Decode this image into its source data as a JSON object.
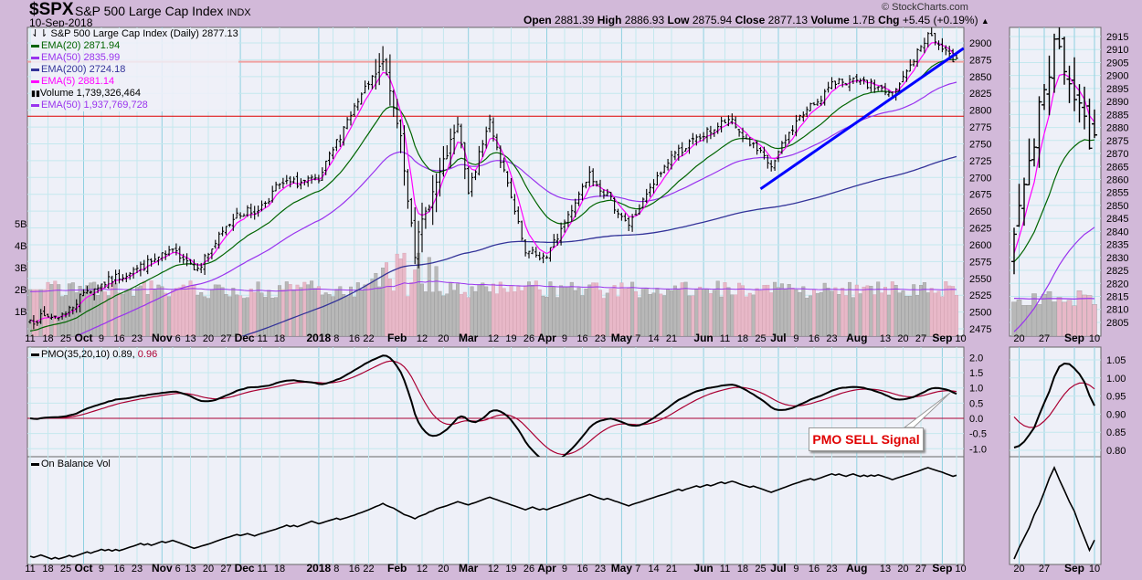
{
  "header": {
    "symbol": "$SPX",
    "name": "S&P 500 Large Cap Index",
    "exchange": "INDX",
    "date": "10-Sep-2018",
    "copyright": "© StockCharts.com",
    "open_label": "Open",
    "open": "2881.39",
    "high_label": "High",
    "high": "2886.93",
    "low_label": "Low",
    "low": "2875.94",
    "close_label": "Close",
    "close": "2877.13",
    "volume_label": "Volume",
    "volume": "1.7B",
    "chg_label": "Chg",
    "chg": "+5.45 (+0.19%)",
    "chg_arrow": "▲"
  },
  "legend": {
    "price": "S&P 500 Large Cap Index (Daily) 2877.13",
    "ema20": "EMA(20) 2871.94",
    "ema50": "EMA(50) 2835.99",
    "ema200": "EMA(200) 2724.18",
    "ema5": "EMA(5) 2881.14",
    "volume": "Volume 1,739,326,464",
    "vol_ema50": "EMA(50) 1,937,769,728",
    "pmo_label": "PMO(35,20,10)",
    "pmo_value": "0.89,",
    "pmo_signal": "0.96",
    "obv": "On Balance Vol"
  },
  "annotation": "PMO SELL Signal",
  "colors": {
    "ema20": "#006400",
    "ema50": "#9933ee",
    "ema200": "#333399",
    "ema5": "#ff00ff",
    "trend": "#0000ff",
    "pmo_signal": "#aa0033",
    "hline_pink": "#f0a0a0",
    "hline_red": "#dd0000"
  },
  "chart_data": {
    "type": "ohlc",
    "title": "$SPX S&P 500 Large Cap Index (Daily)",
    "price_axis": {
      "min": 2475,
      "max": 2900,
      "step": 25
    },
    "zoom_price_axis": {
      "min": 2805,
      "max": 2915,
      "step": 5
    },
    "volume_axis_labels": [
      "1B",
      "2B",
      "3B",
      "4B",
      "5B"
    ],
    "pmo_axis": {
      "min": -1.0,
      "max": 2.0,
      "step": 0.5,
      "labels": [
        "-1.0",
        "-0.5",
        "0.0",
        "0.5",
        "1.0",
        "1.5",
        "2.0"
      ]
    },
    "zoom_pmo_axis": {
      "labels": [
        "0.80",
        "0.85",
        "0.90",
        "0.95",
        "1.00",
        "1.05"
      ],
      "min": 0.8,
      "max": 1.05
    },
    "last_bar": {
      "date": "2018-09-10",
      "open": 2881.39,
      "high": 2886.93,
      "low": 2875.94,
      "close": 2877.13,
      "volume": 1739326464
    },
    "price_keypoints": [
      {
        "date": "2017-09-11",
        "close": 2488
      },
      {
        "date": "2017-09-25",
        "close": 2497
      },
      {
        "date": "2017-10-02",
        "close": 2529
      },
      {
        "date": "2017-10-23",
        "close": 2565
      },
      {
        "date": "2017-11-07",
        "close": 2591
      },
      {
        "date": "2017-11-15",
        "close": 2565
      },
      {
        "date": "2017-11-30",
        "close": 2647
      },
      {
        "date": "2017-12-08",
        "close": 2651
      },
      {
        "date": "2017-12-18",
        "close": 2690
      },
      {
        "date": "2018-01-02",
        "close": 2695
      },
      {
        "date": "2018-01-12",
        "close": 2786
      },
      {
        "date": "2018-01-26",
        "close": 2872
      },
      {
        "date": "2018-02-02",
        "close": 2762
      },
      {
        "date": "2018-02-08",
        "close": 2581
      },
      {
        "date": "2018-02-09",
        "close": 2619
      },
      {
        "date": "2018-02-26",
        "close": 2779
      },
      {
        "date": "2018-03-01",
        "close": 2677
      },
      {
        "date": "2018-03-09",
        "close": 2786
      },
      {
        "date": "2018-03-23",
        "close": 2588
      },
      {
        "date": "2018-04-02",
        "close": 2581
      },
      {
        "date": "2018-04-18",
        "close": 2708
      },
      {
        "date": "2018-05-03",
        "close": 2629
      },
      {
        "date": "2018-05-21",
        "close": 2733
      },
      {
        "date": "2018-06-12",
        "close": 2786
      },
      {
        "date": "2018-06-28",
        "close": 2716
      },
      {
        "date": "2018-07-09",
        "close": 2784
      },
      {
        "date": "2018-07-25",
        "close": 2846
      },
      {
        "date": "2018-08-10",
        "close": 2833
      },
      {
        "date": "2018-08-15",
        "close": 2818
      },
      {
        "date": "2018-08-29",
        "close": 2914
      },
      {
        "date": "2018-09-07",
        "close": 2872
      },
      {
        "date": "2018-09-10",
        "close": 2877
      }
    ],
    "horizontal_lines": [
      2872,
      2791
    ],
    "trendline": [
      {
        "date": "2018-06-25",
        "price": 2683
      },
      {
        "date": "2018-09-12",
        "price": 2892
      }
    ],
    "x_ticks": [
      {
        "d": "2017-09-11",
        "l": "11"
      },
      {
        "d": "2017-09-18",
        "l": "18"
      },
      {
        "d": "2017-09-25",
        "l": "25"
      },
      {
        "d": "2017-10-02",
        "l": "Oct",
        "b": 1
      },
      {
        "d": "2017-10-09",
        "l": "9"
      },
      {
        "d": "2017-10-16",
        "l": "16"
      },
      {
        "d": "2017-10-23",
        "l": "23"
      },
      {
        "d": "2017-11-01",
        "l": "Nov",
        "b": 1
      },
      {
        "d": "2017-11-06",
        "l": "6"
      },
      {
        "d": "2017-11-13",
        "l": "13"
      },
      {
        "d": "2017-11-20",
        "l": "20"
      },
      {
        "d": "2017-11-27",
        "l": "27"
      },
      {
        "d": "2017-12-01",
        "l": "Dec",
        "b": 1
      },
      {
        "d": "2017-12-11",
        "l": "11"
      },
      {
        "d": "2017-12-18",
        "l": "18"
      },
      {
        "d": "2018-01-02",
        "l": "2018",
        "b": 1
      },
      {
        "d": "2018-01-08",
        "l": "8"
      },
      {
        "d": "2018-01-16",
        "l": "16"
      },
      {
        "d": "2018-01-22",
        "l": "22"
      },
      {
        "d": "2018-02-01",
        "l": "Feb",
        "b": 1
      },
      {
        "d": "2018-02-12",
        "l": "12"
      },
      {
        "d": "2018-02-20",
        "l": "20"
      },
      {
        "d": "2018-03-01",
        "l": "Mar",
        "b": 1
      },
      {
        "d": "2018-03-12",
        "l": "12"
      },
      {
        "d": "2018-03-19",
        "l": "19"
      },
      {
        "d": "2018-03-26",
        "l": "26"
      },
      {
        "d": "2018-04-02",
        "l": "Apr",
        "b": 1
      },
      {
        "d": "2018-04-09",
        "l": "9"
      },
      {
        "d": "2018-04-16",
        "l": "16"
      },
      {
        "d": "2018-04-23",
        "l": "23"
      },
      {
        "d": "2018-05-01",
        "l": "May",
        "b": 1
      },
      {
        "d": "2018-05-07",
        "l": "7"
      },
      {
        "d": "2018-05-14",
        "l": "14"
      },
      {
        "d": "2018-05-21",
        "l": "21"
      },
      {
        "d": "2018-06-01",
        "l": "Jun",
        "b": 1
      },
      {
        "d": "2018-06-11",
        "l": "11"
      },
      {
        "d": "2018-06-18",
        "l": "18"
      },
      {
        "d": "2018-06-25",
        "l": "25"
      },
      {
        "d": "2018-07-02",
        "l": "Jul",
        "b": 1
      },
      {
        "d": "2018-07-09",
        "l": "9"
      },
      {
        "d": "2018-07-16",
        "l": "16"
      },
      {
        "d": "2018-07-23",
        "l": "23"
      },
      {
        "d": "2018-08-01",
        "l": "Aug",
        "b": 1
      },
      {
        "d": "2018-08-13",
        "l": "13"
      },
      {
        "d": "2018-08-20",
        "l": "20"
      },
      {
        "d": "2018-08-27",
        "l": "27"
      },
      {
        "d": "2018-09-04",
        "l": "Sep",
        "b": 1
      },
      {
        "d": "2018-09-10",
        "l": "10"
      }
    ],
    "zoom_x_ticks": [
      {
        "d": "2018-08-20",
        "l": "20"
      },
      {
        "d": "2018-08-27",
        "l": "27"
      },
      {
        "d": "2018-09-04",
        "l": "Sep",
        "b": 1
      },
      {
        "d": "2018-09-10",
        "l": "10"
      }
    ]
  }
}
